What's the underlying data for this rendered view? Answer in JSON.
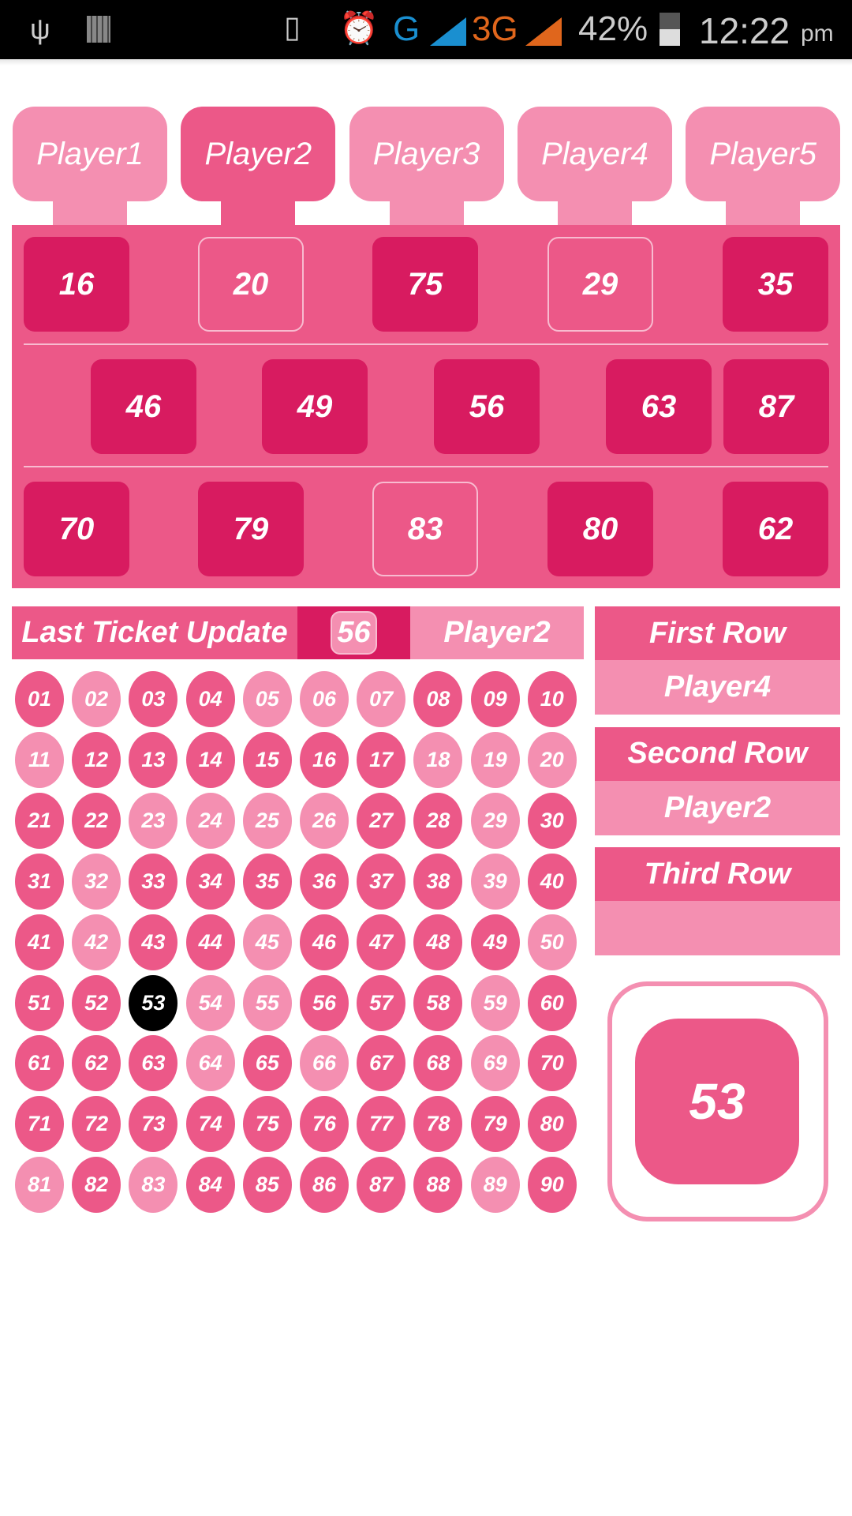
{
  "status_bar": {
    "battery": "42%",
    "time": "12:22",
    "ampm": "pm",
    "network1": "G",
    "network2": "3G",
    "icons": [
      "usb-icon",
      "sd-card-icon",
      "rotate-icon",
      "alarm-icon",
      "signal-icon",
      "battery-charging-icon"
    ]
  },
  "players": [
    {
      "label": "Player1",
      "selected": false
    },
    {
      "label": "Player2",
      "selected": true
    },
    {
      "label": "Player3",
      "selected": false
    },
    {
      "label": "Player4",
      "selected": false
    },
    {
      "label": "Player5",
      "selected": false
    }
  ],
  "ticket": {
    "rows": [
      [
        {
          "n": "16",
          "marked": true
        },
        {
          "n": "20",
          "marked": false
        },
        {
          "n": "75",
          "marked": true
        },
        {
          "n": "29",
          "marked": false
        },
        {
          "n": "35",
          "marked": true
        }
      ],
      [
        {
          "n": "46",
          "marked": true
        },
        {
          "n": "49",
          "marked": true
        },
        {
          "n": "56",
          "marked": true
        },
        {
          "n": "63",
          "marked": true
        },
        {
          "n": "87",
          "marked": true
        }
      ],
      [
        {
          "n": "70",
          "marked": true
        },
        {
          "n": "79",
          "marked": true
        },
        {
          "n": "83",
          "marked": false
        },
        {
          "n": "80",
          "marked": true
        },
        {
          "n": "62",
          "marked": true
        }
      ]
    ]
  },
  "last_update": {
    "label": "Last Ticket Update",
    "number": "56",
    "player": "Player2"
  },
  "winners": [
    {
      "label": "First Row",
      "player": "Player4"
    },
    {
      "label": "Second Row",
      "player": "Player2"
    },
    {
      "label": "Third Row",
      "player": ""
    }
  ],
  "current_number": "53",
  "board": {
    "uncalled": [
      2,
      5,
      6,
      7,
      11,
      18,
      19,
      20,
      23,
      24,
      25,
      26,
      29,
      32,
      39,
      42,
      45,
      50,
      54,
      55,
      59,
      64,
      66,
      69,
      81,
      83,
      89
    ],
    "current": 53
  },
  "colors": {
    "called": "#EC5888",
    "uncalled": "#F48FB1",
    "marked": "#D81B60",
    "current": "#000000"
  }
}
